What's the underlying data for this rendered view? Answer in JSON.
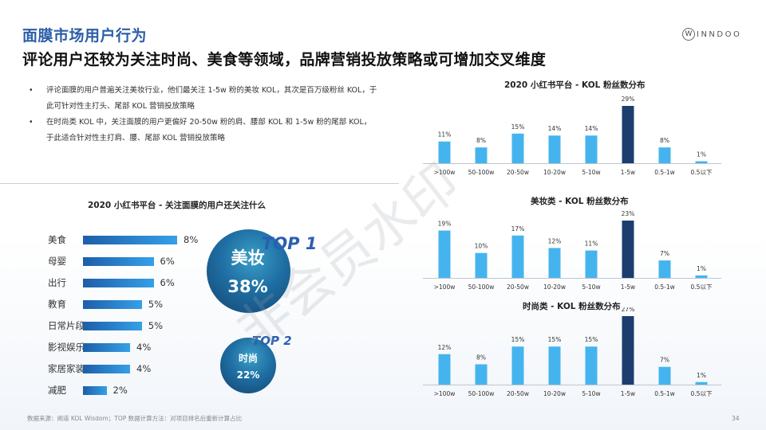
{
  "header": {
    "title": "面膜市场用户行为",
    "subtitle": "评论用户还较为关注时尚、美食等领域，品牌营销投放策略或可增加交叉维度",
    "logo_mark": "W",
    "logo_text": "INNDOO"
  },
  "bullets": [
    "评论面膜的用户普遍关注美妆行业，他们最关注 1-5w 粉的美妆 KOL，其次是百万级粉丝 KOL，于此可针对性主打头、尾部 KOL 营销投放策略",
    "在时尚类 KOL 中，关注面膜的用户更偏好 20-50w 粉的肩、腰部 KOL 和 1-5w 粉的尾部 KOL，于此适合针对性主打肩、腰、尾部 KOL 营销投放策略"
  ],
  "highlights": {
    "top1": {
      "label": "TOP 1",
      "name": "美妆",
      "value": "38%"
    },
    "top2": {
      "label": "TOP 2",
      "name": "时尚",
      "value": "22%"
    }
  },
  "footer": {
    "source": "数据来源：阅道 KOL Wisdom；TOP 数据计算方法：对项目排名后重新计算占比",
    "page": "34"
  },
  "watermark": "非会员水印",
  "colors": {
    "bar": "#45b4ee",
    "bar_highlight": "#1c3d6e",
    "accent": "#2b5ea8"
  },
  "chart_data": [
    {
      "id": "interests",
      "type": "bar",
      "orientation": "horizontal",
      "title": "2020 小红书平台 - 关注面膜的用户还关注什么",
      "categories": [
        "美食",
        "母婴",
        "出行",
        "教育",
        "日常片段",
        "影视娱乐",
        "家居家装",
        "减肥"
      ],
      "values": [
        8,
        6,
        6,
        5,
        5,
        4,
        4,
        2
      ],
      "labels": [
        "8%",
        "6%",
        "6%",
        "5%",
        "5%",
        "4%",
        "4%",
        "2%"
      ]
    },
    {
      "id": "platform",
      "type": "bar",
      "title": "2020 小红书平台 - KOL 粉丝数分布",
      "categories": [
        ">100w",
        "50-100w",
        "20-50w",
        "10-20w",
        "5-10w",
        "1-5w",
        "0.5-1w",
        "0.5以下"
      ],
      "values": [
        11,
        8,
        15,
        14,
        14,
        29,
        8,
        1
      ],
      "labels": [
        "11%",
        "8%",
        "15%",
        "14%",
        "14%",
        "29%",
        "8%",
        "1%"
      ],
      "highlight_index": 5
    },
    {
      "id": "beauty",
      "type": "bar",
      "title": "美妆类 - KOL 粉丝数分布",
      "categories": [
        ">100w",
        "50-100w",
        "20-50w",
        "10-20w",
        "5-10w",
        "1-5w",
        "0.5-1w",
        "0.5以下"
      ],
      "values": [
        19,
        10,
        17,
        12,
        11,
        23,
        7,
        1
      ],
      "labels": [
        "19%",
        "10%",
        "17%",
        "12%",
        "11%",
        "23%",
        "7%",
        "1%"
      ],
      "highlight_index": 5
    },
    {
      "id": "fashion",
      "type": "bar",
      "title": "时尚类 - KOL 粉丝数分布",
      "categories": [
        ">100w",
        "50-100w",
        "20-50w",
        "10-20w",
        "5-10w",
        "1-5w",
        "0.5-1w",
        "0.5以下"
      ],
      "values": [
        12,
        8,
        15,
        15,
        15,
        27,
        7,
        1
      ],
      "labels": [
        "12%",
        "8%",
        "15%",
        "15%",
        "15%",
        "27%",
        "7%",
        "1%"
      ],
      "highlight_index": 5
    }
  ]
}
